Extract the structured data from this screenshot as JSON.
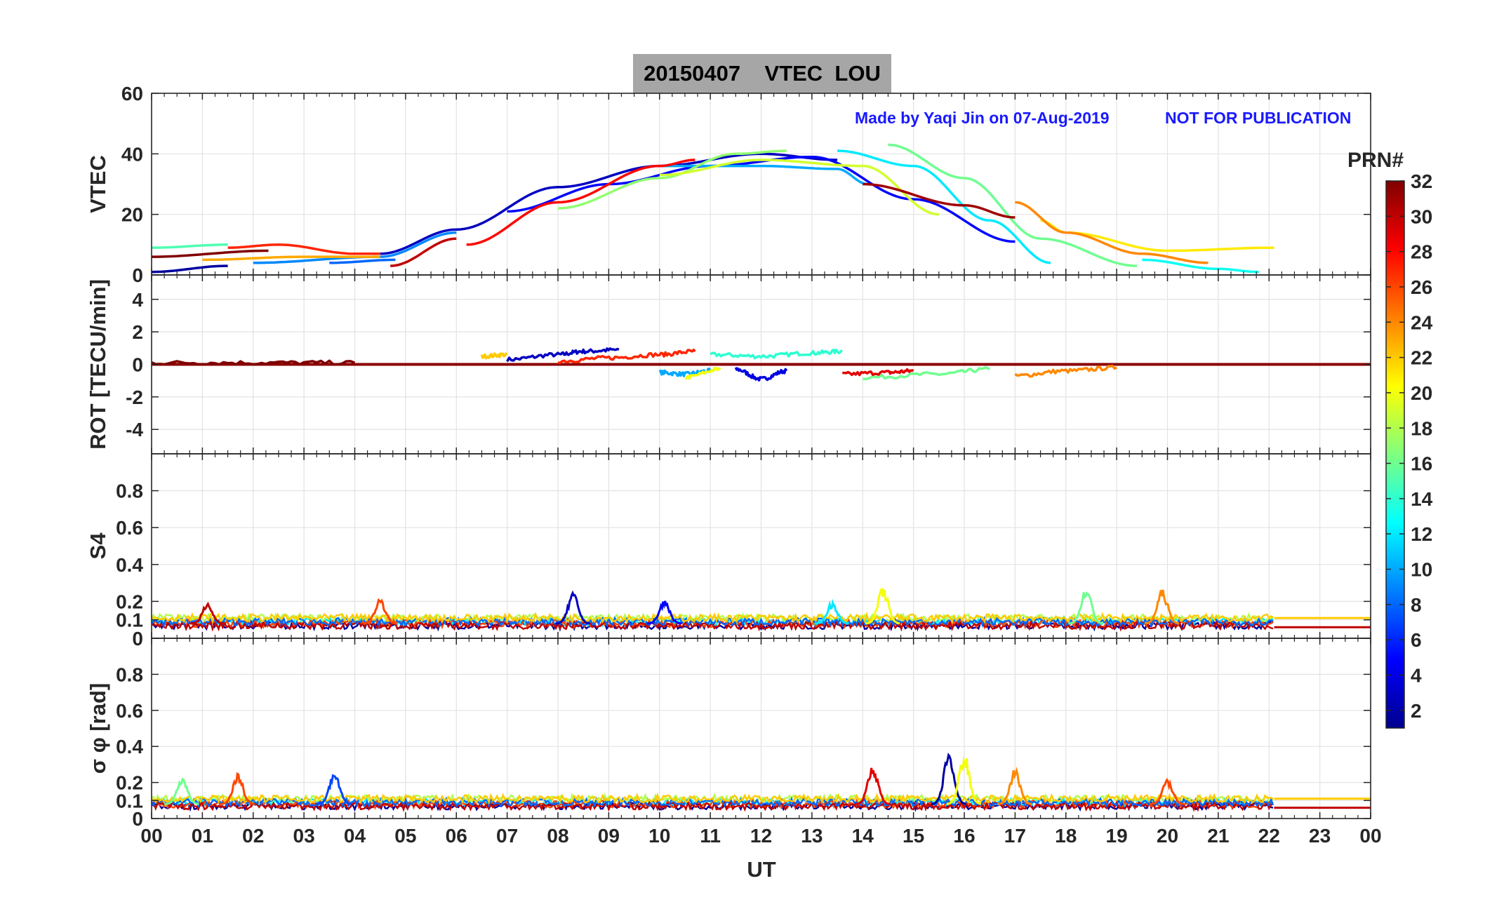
{
  "header": {
    "title": "20150407    VTEC  LOU",
    "credit_left": "Made by Yaqi Jin on 07-Aug-2019",
    "credit_right": "NOT FOR PUBLICATION"
  },
  "colorbar": {
    "title": "PRN#",
    "ticks": [
      "2",
      "4",
      "6",
      "8",
      "10",
      "12",
      "14",
      "16",
      "18",
      "20",
      "22",
      "24",
      "26",
      "28",
      "30",
      "32"
    ],
    "range": [
      1,
      32
    ]
  },
  "chart_data": [
    {
      "type": "line",
      "title": "VTEC",
      "ylabel": "VTEC",
      "xlabel": "",
      "xlim": [
        0,
        24
      ],
      "ylim": [
        0,
        60
      ],
      "yticks": [
        0,
        20,
        40,
        60
      ],
      "series": [
        {
          "prn": 2,
          "x": [
            0,
            1.5
          ],
          "values": [
            1,
            3
          ]
        },
        {
          "prn": 3,
          "x": [
            4.5,
            6,
            8,
            10,
            12,
            13.5
          ],
          "values": [
            7,
            15,
            29,
            36,
            40,
            38
          ]
        },
        {
          "prn": 5,
          "x": [
            7,
            9,
            11,
            13,
            15,
            17
          ],
          "values": [
            21,
            30,
            36,
            39,
            25,
            11
          ]
        },
        {
          "prn": 8,
          "x": [
            3.5,
            4.8
          ],
          "values": [
            4,
            5
          ]
        },
        {
          "prn": 9,
          "x": [
            2,
            4.5,
            6
          ],
          "values": [
            4,
            6,
            14
          ]
        },
        {
          "prn": 10,
          "x": [
            10,
            12,
            13.5,
            14.1
          ],
          "values": [
            36,
            36,
            35,
            30
          ]
        },
        {
          "prn": 12,
          "x": [
            13.5,
            15,
            16.5,
            17.7
          ],
          "values": [
            41,
            36,
            18,
            4
          ]
        },
        {
          "prn": 13,
          "x": [
            19.5,
            21,
            21.8
          ],
          "values": [
            5,
            2,
            1
          ]
        },
        {
          "prn": 15,
          "x": [
            0,
            1.5
          ],
          "values": [
            9,
            10
          ]
        },
        {
          "prn": 16,
          "x": [
            14.5,
            16,
            17.5,
            19.4
          ],
          "values": [
            43,
            32,
            12,
            3
          ]
        },
        {
          "prn": 17,
          "x": [
            8,
            10,
            11.5,
            12.5
          ],
          "values": [
            22,
            32,
            40,
            41
          ]
        },
        {
          "prn": 19,
          "x": [
            10,
            12,
            14,
            15.5
          ],
          "values": [
            33,
            38,
            36,
            20
          ]
        },
        {
          "prn": 21,
          "x": [
            17.5,
            18,
            20,
            22.1
          ],
          "values": [
            18,
            14,
            8,
            9
          ]
        },
        {
          "prn": 23,
          "x": [
            1,
            3,
            4.5
          ],
          "values": [
            5,
            6,
            6
          ]
        },
        {
          "prn": 24,
          "x": [
            17,
            18,
            19.5,
            20.8
          ],
          "values": [
            24,
            14,
            7,
            4
          ]
        },
        {
          "prn": 27,
          "x": [
            1.5,
            2.5,
            4,
            4.5
          ],
          "values": [
            9,
            10,
            7,
            7
          ]
        },
        {
          "prn": 28,
          "x": [
            6.2,
            8,
            10,
            10.7
          ],
          "values": [
            10,
            24,
            36,
            38
          ]
        },
        {
          "prn": 30,
          "x": [
            4.7,
            6
          ],
          "values": [
            3,
            12
          ]
        },
        {
          "prn": 31,
          "x": [
            14,
            16,
            17
          ],
          "values": [
            30,
            23,
            19
          ]
        },
        {
          "prn": 32,
          "x": [
            0,
            2.3
          ],
          "values": [
            6,
            8
          ]
        }
      ]
    },
    {
      "type": "line",
      "title": "ROT",
      "ylabel": "ROT [TECU/min]",
      "xlim": [
        0,
        24
      ],
      "ylim": [
        -5.5,
        5.5
      ],
      "yticks": [
        -4,
        -2,
        0,
        2,
        4
      ],
      "series": [
        {
          "prn": 3,
          "x": [
            7,
            8,
            8.5,
            9.2
          ],
          "values": [
            0.3,
            0.6,
            0.8,
            0.9
          ]
        },
        {
          "prn": 4,
          "x": [
            11.5,
            12,
            12.5
          ],
          "values": [
            -0.3,
            -0.9,
            -0.4
          ]
        },
        {
          "prn": 10,
          "x": [
            10,
            10.5,
            11
          ],
          "values": [
            -0.5,
            -0.6,
            -0.4
          ]
        },
        {
          "prn": 14,
          "x": [
            11,
            12,
            13,
            13.6
          ],
          "values": [
            0.6,
            0.5,
            0.7,
            0.8
          ]
        },
        {
          "prn": 16,
          "x": [
            14,
            15.5,
            16.5
          ],
          "values": [
            -0.8,
            -0.6,
            -0.3
          ]
        },
        {
          "prn": 20,
          "x": [
            10.5,
            11.2
          ],
          "values": [
            -0.8,
            -0.3
          ]
        },
        {
          "prn": 22,
          "x": [
            6.5,
            7
          ],
          "values": [
            0.5,
            0.6
          ]
        },
        {
          "prn": 24,
          "x": [
            17,
            18,
            19
          ],
          "values": [
            -0.7,
            -0.4,
            -0.2
          ]
        },
        {
          "prn": 27,
          "x": [
            8,
            9,
            10,
            10.7
          ],
          "values": [
            0.2,
            0.4,
            0.6,
            0.8
          ]
        },
        {
          "prn": 29,
          "x": [
            13.6,
            14.5,
            15
          ],
          "values": [
            -0.6,
            -0.5,
            -0.4
          ]
        },
        {
          "prn": 32,
          "x": [
            0,
            2,
            4
          ],
          "values": [
            0.1,
            0.1,
            0.1
          ]
        }
      ]
    },
    {
      "type": "line",
      "title": "S4",
      "ylabel": "S4",
      "xlim": [
        0,
        24
      ],
      "ylim": [
        0,
        1
      ],
      "yticks": [
        0,
        0.1,
        0.2,
        0.4,
        0.6,
        0.8
      ],
      "peaks": [
        {
          "prn": 3,
          "x": 8.3,
          "value": 0.25
        },
        {
          "prn": 5,
          "x": 10.1,
          "value": 0.21
        },
        {
          "prn": 12,
          "x": 13.4,
          "value": 0.2
        },
        {
          "prn": 20,
          "x": 14.4,
          "value": 0.28
        },
        {
          "prn": 16,
          "x": 18.4,
          "value": 0.28
        },
        {
          "prn": 24,
          "x": 19.9,
          "value": 0.27
        },
        {
          "prn": 26,
          "x": 4.5,
          "value": 0.22
        },
        {
          "prn": 30,
          "x": 1.1,
          "value": 0.19
        }
      ]
    },
    {
      "type": "line",
      "title": "Sigma phi",
      "ylabel": "σ φ [rad]",
      "xlim": [
        0,
        24
      ],
      "ylim": [
        0,
        1
      ],
      "yticks": [
        0,
        0.1,
        0.2,
        0.4,
        0.6,
        0.8
      ],
      "xticks": [
        "00",
        "01",
        "02",
        "03",
        "04",
        "05",
        "06",
        "07",
        "08",
        "09",
        "10",
        "11",
        "12",
        "13",
        "14",
        "15",
        "16",
        "17",
        "18",
        "19",
        "20",
        "21",
        "22",
        "23",
        "00"
      ],
      "xlabel_bottom": "UT",
      "peaks": [
        {
          "prn": 2,
          "x": 15.7,
          "value": 0.39
        },
        {
          "prn": 20,
          "x": 16.0,
          "value": 0.37
        },
        {
          "prn": 29,
          "x": 14.2,
          "value": 0.3
        },
        {
          "prn": 24,
          "x": 17.0,
          "value": 0.28
        },
        {
          "prn": 7,
          "x": 3.6,
          "value": 0.26
        },
        {
          "prn": 26,
          "x": 1.7,
          "value": 0.25
        },
        {
          "prn": 16,
          "x": 0.6,
          "value": 0.23
        },
        {
          "prn": 26,
          "x": 20.0,
          "value": 0.22
        }
      ]
    }
  ]
}
